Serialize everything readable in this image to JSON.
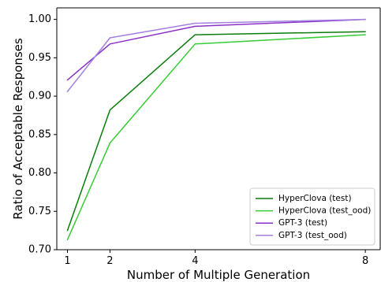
{
  "chart_data": {
    "type": "line",
    "xlabel": "Number of Multiple Generation",
    "ylabel": "Ratio of Acceptable Responses",
    "x": [
      1,
      2,
      4,
      8
    ],
    "xticks": [
      "1",
      "2",
      "4",
      "8"
    ],
    "yticks": [
      "0.70",
      "0.75",
      "0.80",
      "0.85",
      "0.90",
      "0.95",
      "1.00"
    ],
    "xlim": [
      0.75,
      8.35
    ],
    "ylim": [
      0.7,
      1.015
    ],
    "grid": false,
    "legend_position": "lower-right",
    "series": [
      {
        "name": "HyperClova (test)",
        "color": "#0a7d0a",
        "values": [
          0.725,
          0.882,
          0.98,
          0.984
        ]
      },
      {
        "name": "HyperClova (test_ood)",
        "color": "#36cc36",
        "values": [
          0.713,
          0.839,
          0.968,
          0.98
        ]
      },
      {
        "name": "GPT-3 (test)",
        "color": "#8a32c8",
        "values": [
          0.921,
          0.968,
          0.991,
          1.0
        ]
      },
      {
        "name": "GPT-3 (test_ood)",
        "color": "#a37fe0",
        "values": [
          0.906,
          0.976,
          0.995,
          1.0
        ]
      }
    ]
  }
}
